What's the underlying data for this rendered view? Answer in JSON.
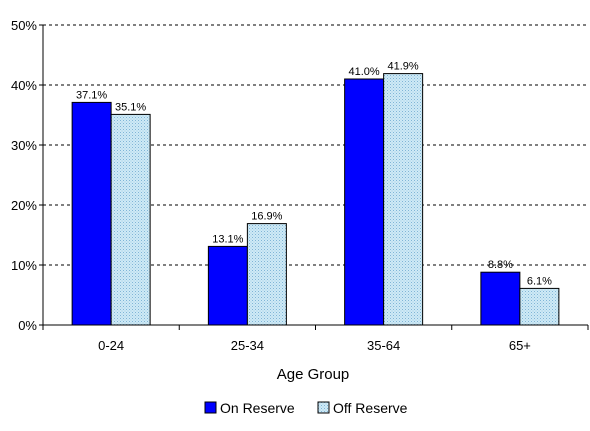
{
  "chart_data": {
    "type": "bar",
    "title": "",
    "xlabel": "Age Group",
    "ylabel": "",
    "categories": [
      "0-24",
      "25-34",
      "35-64",
      "65+"
    ],
    "ylim": [
      0,
      50
    ],
    "yticks": [
      0,
      10,
      20,
      30,
      40,
      50
    ],
    "ytick_labels": [
      "0%",
      "10%",
      "20%",
      "30%",
      "40%",
      "50%"
    ],
    "grid": "horizontal dashed",
    "legend_position": "bottom",
    "series": [
      {
        "name": "On Reserve",
        "values": [
          37.1,
          13.1,
          41.0,
          8.8
        ],
        "labels": [
          "37.1%",
          "13.1%",
          "41.0%",
          "8.8%"
        ],
        "color": "#0000ff",
        "pattern": "solid"
      },
      {
        "name": "Off Reserve",
        "values": [
          35.1,
          16.9,
          41.9,
          6.1
        ],
        "labels": [
          "35.1%",
          "16.9%",
          "41.9%",
          "6.1%"
        ],
        "color": "#b4dcf0",
        "pattern": "dotted"
      }
    ]
  }
}
